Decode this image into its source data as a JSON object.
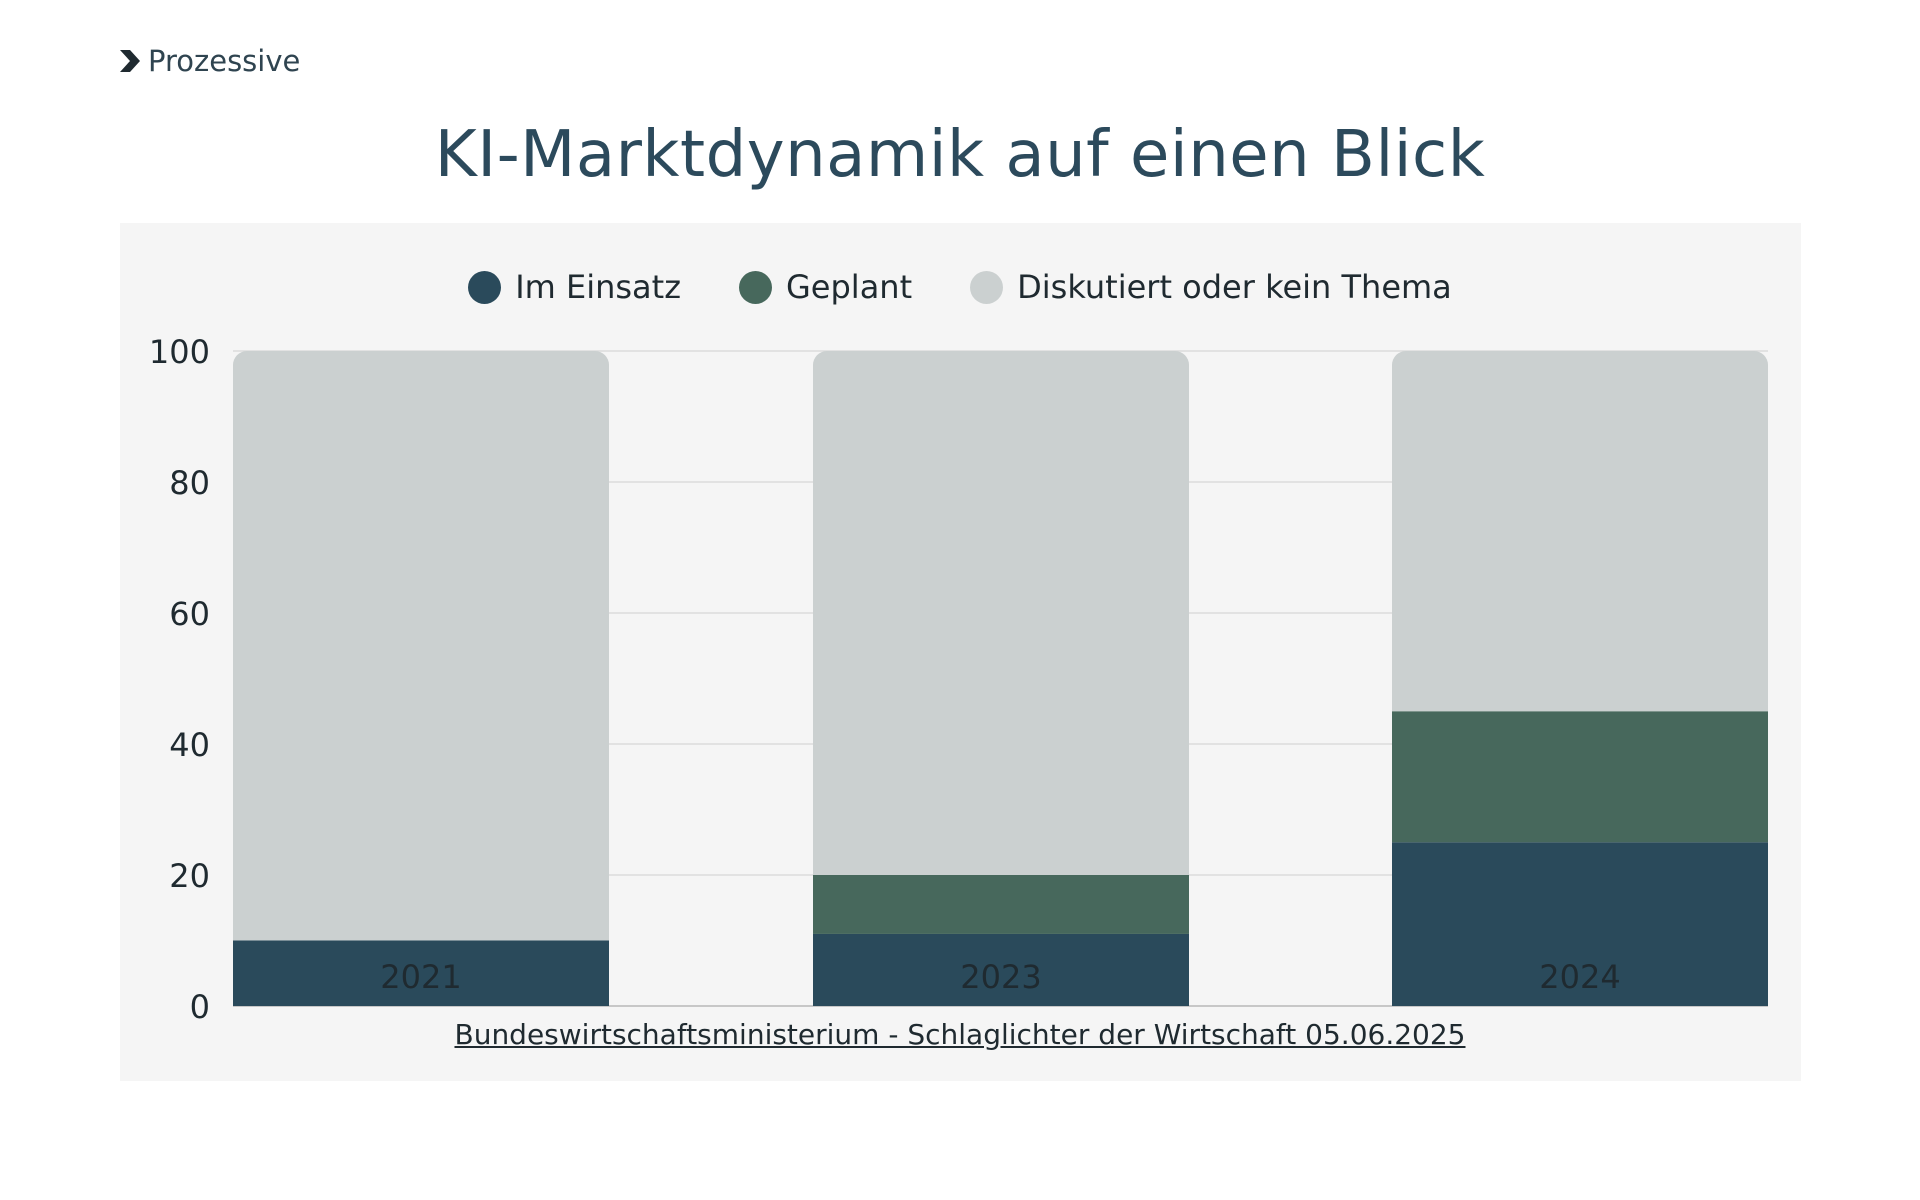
{
  "brand": {
    "name": "Prozessive"
  },
  "title": "KI-Marktdynamik auf einen Blick",
  "source": "Bundeswirtschaftsministerium - Schlaglichter der Wirtschaft 05.06.2025",
  "colors": {
    "im_einsatz": "#2a4a5b",
    "geplant": "#47685c",
    "diskutiert": "#cbd0d0",
    "panel": "#f5f5f5",
    "title": "#2c4a5c"
  },
  "chart_data": {
    "type": "bar",
    "stacked": true,
    "categories": [
      "2021",
      "2023",
      "2024"
    ],
    "series": [
      {
        "name": "Im Einsatz",
        "values": [
          10,
          11,
          25
        ]
      },
      {
        "name": "Geplant",
        "values": [
          0,
          9,
          20
        ]
      },
      {
        "name": "Diskutiert oder kein Thema",
        "values": [
          90,
          80,
          55
        ]
      }
    ],
    "ylim": [
      0,
      100
    ],
    "yticks": [
      "0",
      "20",
      "40",
      "60",
      "80",
      "100"
    ],
    "grid": true,
    "legend": "top-center"
  }
}
